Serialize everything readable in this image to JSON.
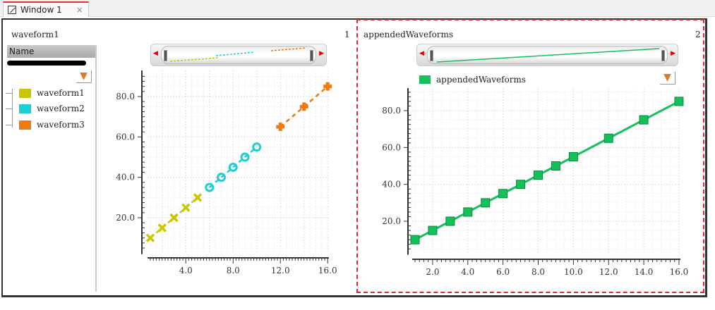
{
  "tab": {
    "title": "Window 1",
    "close": "×",
    "icon": "window-icon"
  },
  "panel1": {
    "title": "waveform1",
    "index": "1",
    "legend_header": "Name",
    "filter_icon": "filter-icon",
    "legend": [
      {
        "label": "waveform1",
        "color": "#c8c800"
      },
      {
        "label": "waveform2",
        "color": "#1ccfd2"
      },
      {
        "label": "waveform3",
        "color": "#f07a10"
      }
    ]
  },
  "panel2": {
    "title": "appendedWaveforms",
    "index": "2",
    "legend_label": "appendedWaveforms",
    "legend_color": "#14c05a",
    "filter_icon": "filter-icon"
  },
  "chart_data": [
    {
      "type": "scatter",
      "grid": true,
      "xlim": [
        1,
        16
      ],
      "ylim": [
        0,
        90
      ],
      "xticks": [
        "4.0",
        "8.0",
        "12.0",
        "16.0"
      ],
      "yticks": [
        "20.0",
        "40.0",
        "60.0",
        "80.0"
      ],
      "series": [
        {
          "name": "waveform1",
          "color": "#c8c800",
          "marker": "x",
          "x": [
            1,
            2,
            3,
            4,
            5
          ],
          "y": [
            10,
            15,
            20,
            25,
            30
          ]
        },
        {
          "name": "waveform2",
          "color": "#1ccfd2",
          "marker": "circle",
          "x": [
            6,
            7,
            8,
            9,
            10
          ],
          "y": [
            35,
            40,
            45,
            50,
            55
          ]
        },
        {
          "name": "waveform3",
          "color": "#f07a10",
          "marker": "cross",
          "x": [
            12,
            14,
            16
          ],
          "y": [
            65,
            75,
            85
          ]
        }
      ]
    },
    {
      "type": "line",
      "grid": true,
      "xlim": [
        1,
        16
      ],
      "ylim": [
        0,
        90
      ],
      "xticks": [
        "2.0",
        "4.0",
        "6.0",
        "8.0",
        "10.0",
        "12.0",
        "14.0",
        "16.0"
      ],
      "yticks": [
        "20.0",
        "40.0",
        "60.0",
        "80.0"
      ],
      "series": [
        {
          "name": "appendedWaveforms",
          "color": "#14c05a",
          "marker": "square",
          "x": [
            1,
            2,
            3,
            4,
            5,
            6,
            7,
            8,
            9,
            10,
            12,
            14,
            16
          ],
          "y": [
            10,
            15,
            20,
            25,
            30,
            35,
            40,
            45,
            50,
            55,
            65,
            75,
            85
          ]
        }
      ]
    }
  ]
}
